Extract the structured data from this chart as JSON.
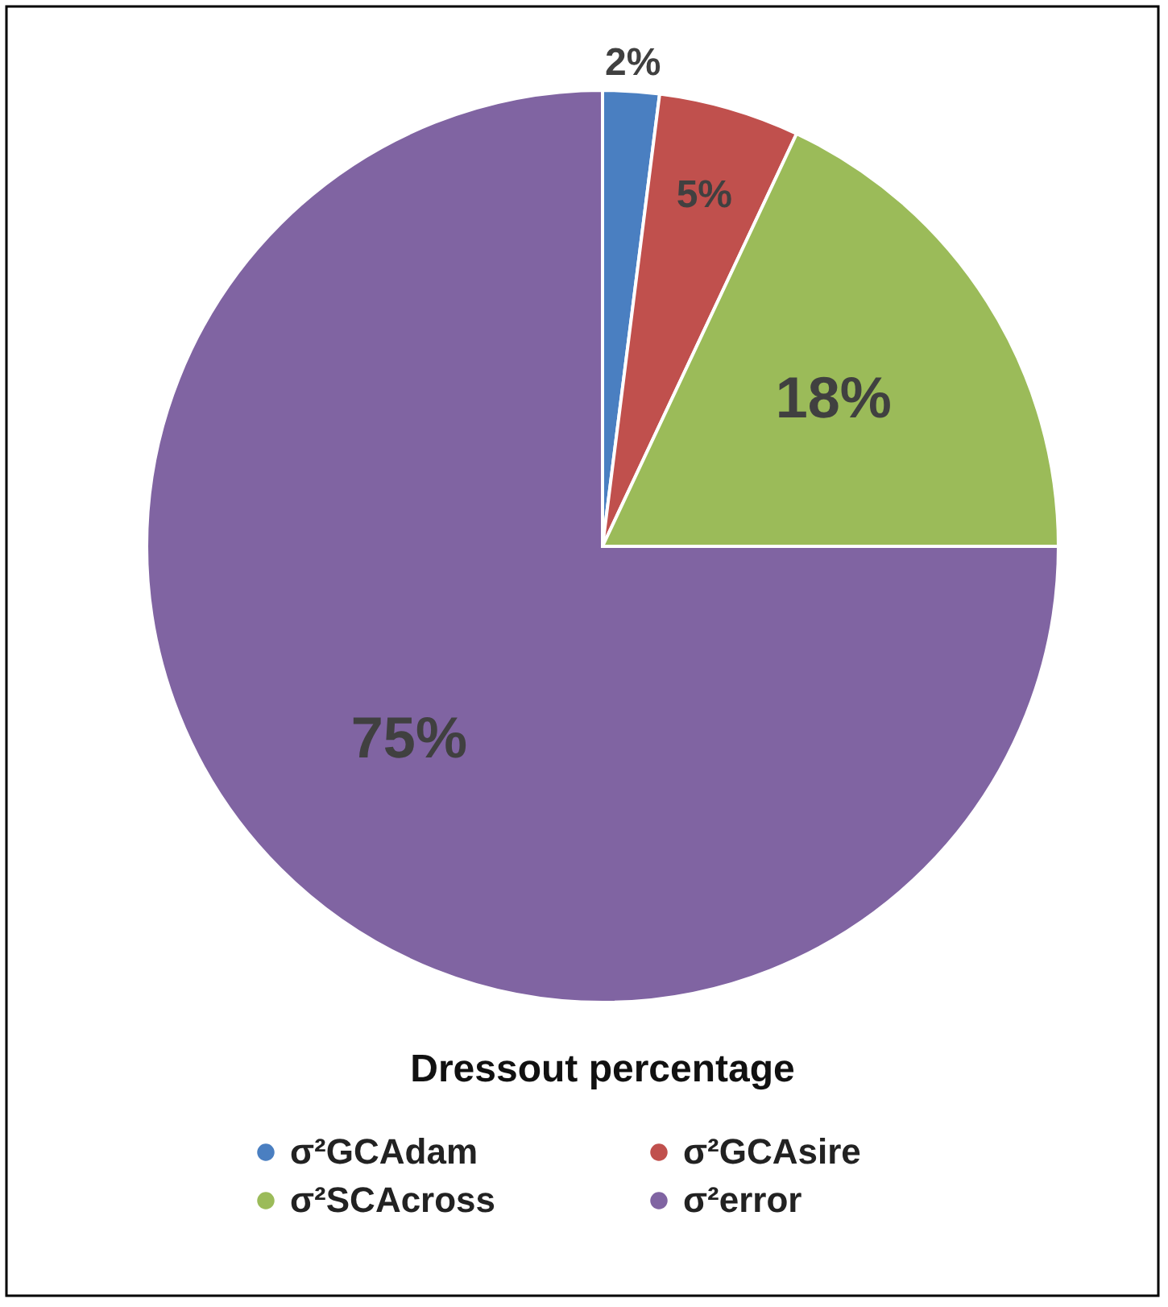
{
  "chart_data": {
    "type": "pie",
    "title": "Dressout percentage",
    "categories": [
      "σ²GCAdam",
      "σ²GCAsire",
      "σ²SCAcross",
      "σ²error"
    ],
    "values": [
      2,
      5,
      18,
      75
    ],
    "colors": [
      "#4a7fc1",
      "#c0504d",
      "#9bbb59",
      "#8064a2"
    ],
    "value_labels": [
      "2%",
      "5%",
      "18%",
      "75%"
    ],
    "legend": "bottom"
  }
}
